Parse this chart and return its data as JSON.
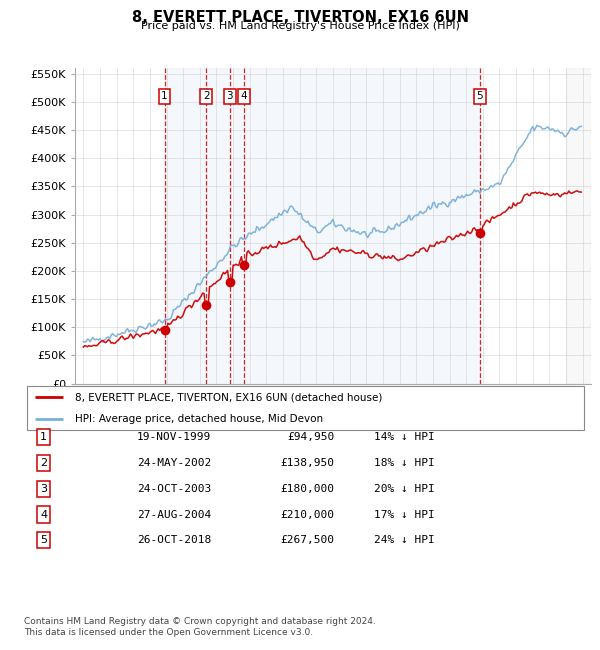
{
  "title": "8, EVERETT PLACE, TIVERTON, EX16 6UN",
  "subtitle": "Price paid vs. HM Land Registry's House Price Index (HPI)",
  "ylim": [
    0,
    560000
  ],
  "yticks": [
    0,
    50000,
    100000,
    150000,
    200000,
    250000,
    300000,
    350000,
    400000,
    450000,
    500000,
    550000
  ],
  "ytick_labels": [
    "£0",
    "£50K",
    "£100K",
    "£150K",
    "£200K",
    "£250K",
    "£300K",
    "£350K",
    "£400K",
    "£450K",
    "£500K",
    "£550K"
  ],
  "xlim_start": 1994.5,
  "xlim_end": 2025.5,
  "property_color": "#cc0000",
  "hpi_color": "#7ab0d8",
  "vline_color": "#cc0000",
  "transactions": [
    {
      "num": 1,
      "date": "19-NOV-1999",
      "year": 1999.88,
      "price": 94950,
      "pct": "14%"
    },
    {
      "num": 2,
      "date": "24-MAY-2002",
      "year": 2002.39,
      "price": 138950,
      "pct": "18%"
    },
    {
      "num": 3,
      "date": "24-OCT-2003",
      "year": 2003.81,
      "price": 180000,
      "pct": "20%"
    },
    {
      "num": 4,
      "date": "27-AUG-2004",
      "year": 2004.65,
      "price": 210000,
      "pct": "17%"
    },
    {
      "num": 5,
      "date": "26-OCT-2018",
      "year": 2018.81,
      "price": 267500,
      "pct": "24%"
    }
  ],
  "legend_property": "8, EVERETT PLACE, TIVERTON, EX16 6UN (detached house)",
  "legend_hpi": "HPI: Average price, detached house, Mid Devon",
  "footer": "Contains HM Land Registry data © Crown copyright and database right 2024.\nThis data is licensed under the Open Government Licence v3.0.",
  "table_rows": [
    {
      "num": 1,
      "date": "19-NOV-1999",
      "price": "£94,950",
      "pct": "14% ↓ HPI"
    },
    {
      "num": 2,
      "date": "24-MAY-2002",
      "price": "£138,950",
      "pct": "18% ↓ HPI"
    },
    {
      "num": 3,
      "date": "24-OCT-2003",
      "price": "£180,000",
      "pct": "20% ↓ HPI"
    },
    {
      "num": 4,
      "date": "27-AUG-2004",
      "price": "£210,000",
      "pct": "17% ↓ HPI"
    },
    {
      "num": 5,
      "date": "26-OCT-2018",
      "price": "£267,500",
      "pct": "24% ↓ HPI"
    }
  ]
}
